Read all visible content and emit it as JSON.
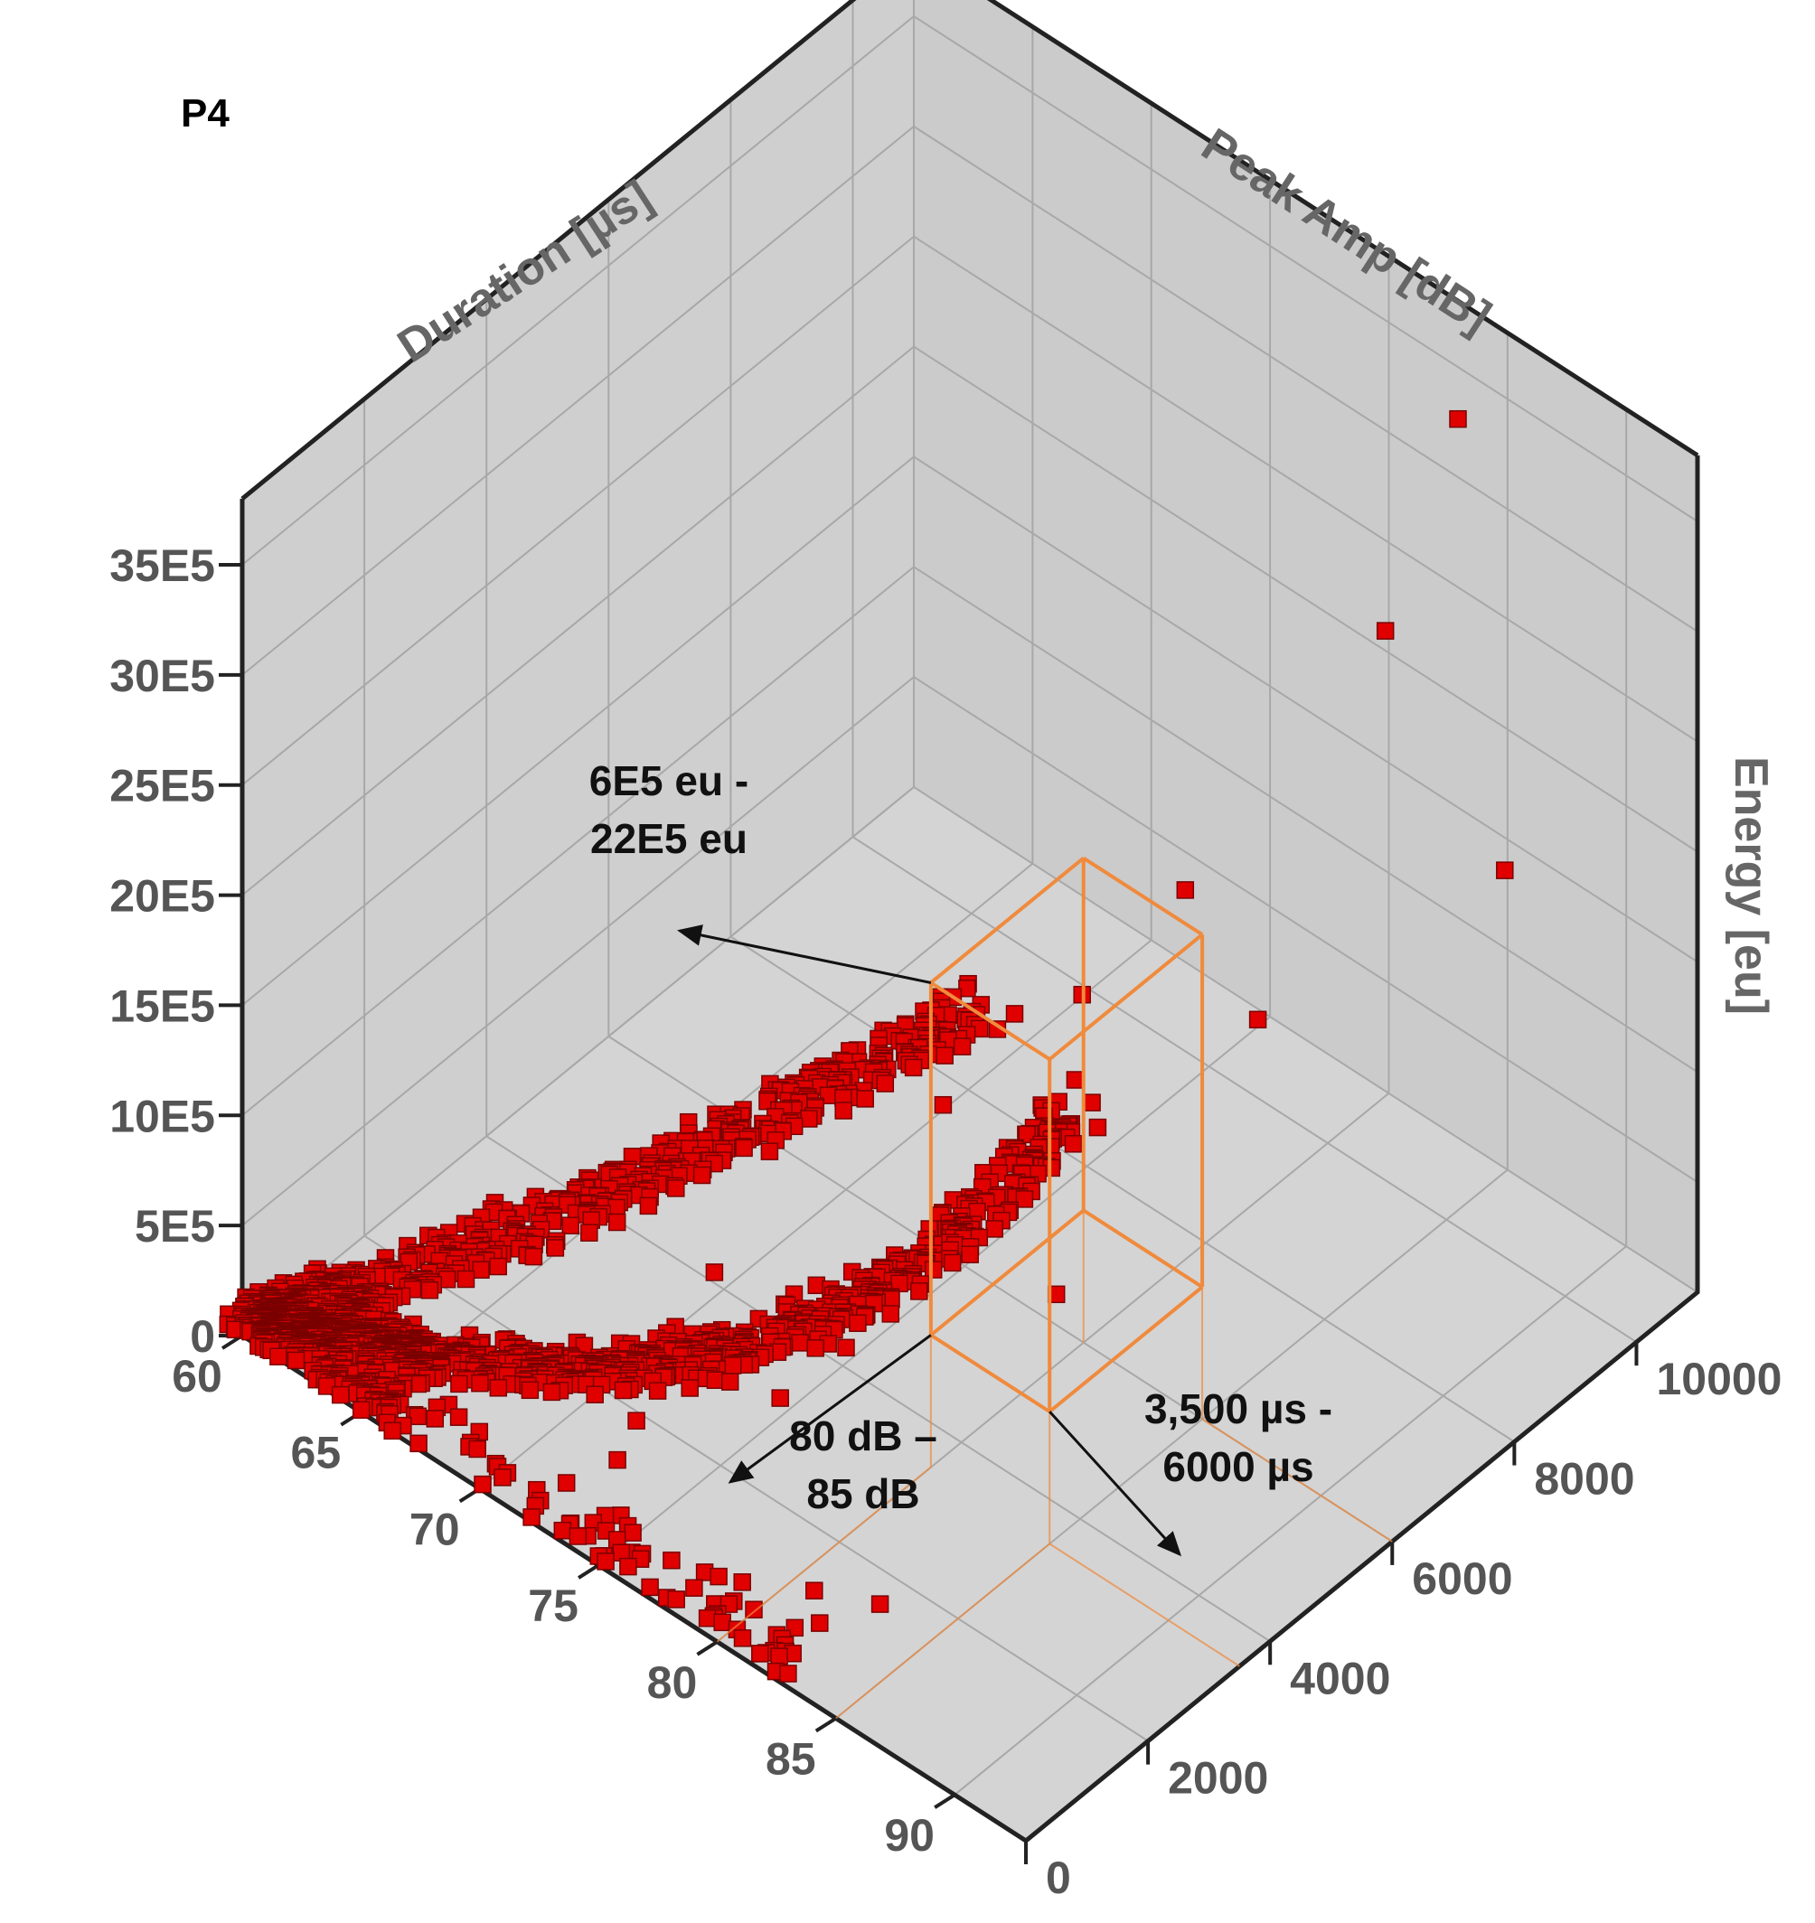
{
  "chart_data": {
    "type": "scatter3d",
    "panel_label": "P4",
    "axes": {
      "peak_amp": {
        "label": "Peak Amp [dB]",
        "range": [
          60,
          93
        ],
        "ticks": [
          "60",
          "65",
          "70",
          "75",
          "80",
          "85",
          "90"
        ]
      },
      "duration": {
        "label": "Duration [µs]",
        "range": [
          0,
          11000
        ],
        "ticks": [
          "0",
          "2000",
          "4000",
          "6000",
          "8000",
          "10000"
        ]
      },
      "energy": {
        "label": "Energy [eu]",
        "range": [
          0,
          3800000
        ],
        "ticks": [
          "0",
          "5E5",
          "10E5",
          "15E5",
          "20E5",
          "25E5",
          "30E5",
          "35E5"
        ]
      }
    },
    "selection_box": {
      "peak_amp": [
        80,
        85
      ],
      "duration": [
        3500,
        6000
      ],
      "energy": [
        600000,
        2200000
      ],
      "color": "#f08a3c"
    },
    "annotations": [
      {
        "lines": [
          "6E5 eu -",
          "22E5 eu"
        ]
      },
      {
        "lines": [
          "80 dB –",
          "85 dB"
        ]
      },
      {
        "lines": [
          "3,500 µs -",
          "6000 µs"
        ]
      }
    ],
    "marker_color": "#e00000",
    "grid": true,
    "outliers": [
      {
        "amp": 86,
        "dur": 9800,
        "energy": 3750000
      },
      {
        "amp": 85,
        "dur": 9000,
        "energy": 2900000
      },
      {
        "amp": 83,
        "dur": 6500,
        "energy": 2150000
      },
      {
        "amp": 89,
        "dur": 9400,
        "energy": 2000000
      },
      {
        "amp": 81,
        "dur": 4200,
        "energy": 1900000
      },
      {
        "amp": 82,
        "dur": 5200,
        "energy": 1900000
      },
      {
        "amp": 84,
        "dur": 7300,
        "energy": 1450000
      },
      {
        "amp": 84,
        "dur": 4000,
        "energy": 950000
      },
      {
        "amp": 80,
        "dur": 3700,
        "energy": 1600000
      },
      {
        "amp": 79,
        "dur": 2500,
        "energy": 700000
      },
      {
        "amp": 77,
        "dur": 2200,
        "energy": 400000
      },
      {
        "amp": 73,
        "dur": 1400,
        "energy": 200000
      },
      {
        "amp": 75,
        "dur": 1900,
        "energy": 900000
      },
      {
        "amp": 74,
        "dur": 700,
        "energy": 250000
      },
      {
        "amp": 76,
        "dur": 300,
        "energy": 30000
      },
      {
        "amp": 79,
        "dur": 800,
        "energy": 20000
      },
      {
        "amp": 80,
        "dur": 600,
        "energy": 10000
      },
      {
        "amp": 81,
        "dur": 1200,
        "energy": 30000
      },
      {
        "amp": 82,
        "dur": 900,
        "energy": 20000
      },
      {
        "amp": 83,
        "dur": 1500,
        "energy": 40000
      },
      {
        "amp": 78,
        "dur": 400,
        "energy": 15000
      }
    ]
  }
}
